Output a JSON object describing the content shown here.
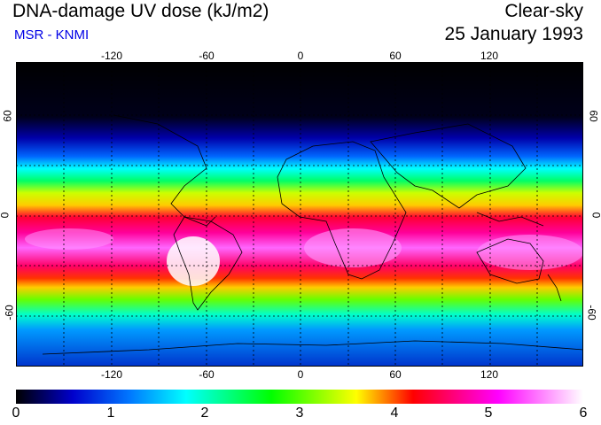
{
  "header": {
    "title": "DNA-damage UV dose (kJ/m2)",
    "source": "MSR - KNMI",
    "condition": "Clear-sky",
    "date": "25 January 1993"
  },
  "map": {
    "lon_ticks": [
      "-120",
      "-60",
      "0",
      "60",
      "120"
    ],
    "lat_ticks": [
      "60",
      "0",
      "-60"
    ]
  },
  "colorbar": {
    "labels": [
      "0",
      "1",
      "2",
      "3",
      "4",
      "5",
      "6"
    ],
    "colors": [
      "#000000",
      "#0000cc",
      "#00ffff",
      "#00ff00",
      "#ffff00",
      "#ff0000",
      "#ff00ff",
      "#ffffff"
    ]
  }
}
